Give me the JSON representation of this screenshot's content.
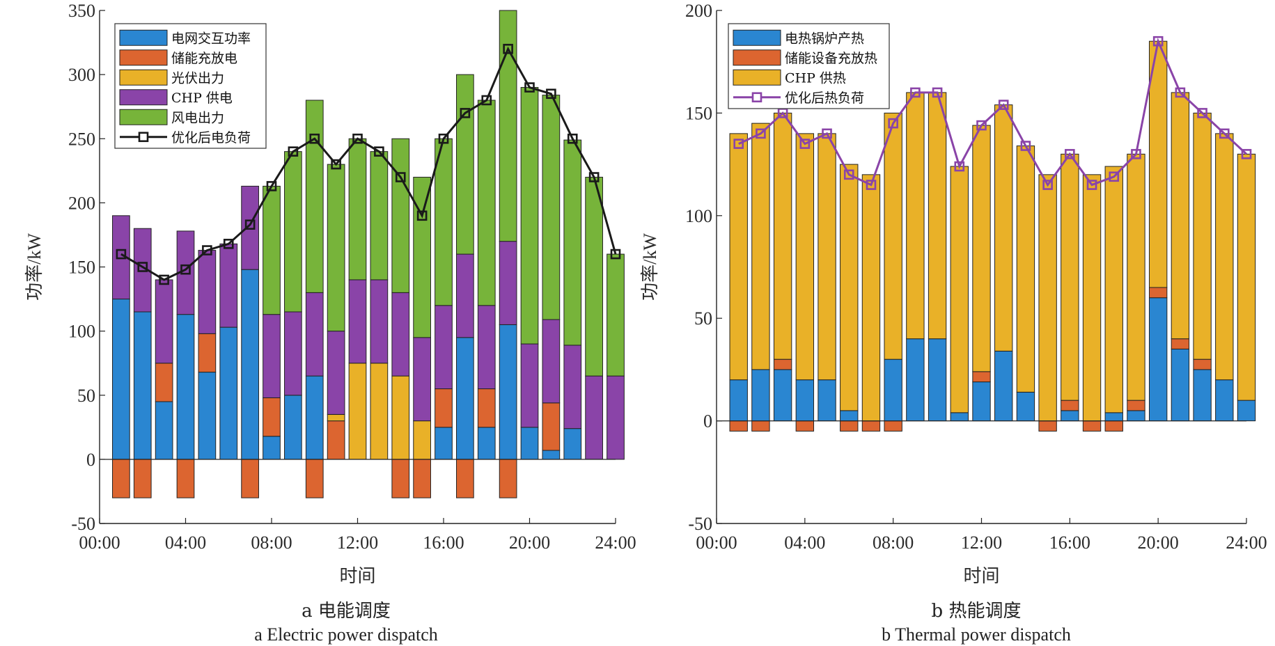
{
  "colors": {
    "blue": "#2a86d1",
    "orange": "#dc6530",
    "yellow": "#e9b128",
    "purple": "#8a44a8",
    "green": "#77b43a",
    "line_black": "#1a1a1a",
    "line_purple": "#8a44a8"
  },
  "chart_data": [
    {
      "id": "a",
      "type": "bar",
      "stacked": true,
      "caption_cn": "a  电能调度",
      "caption_en": "a  Electric power dispatch",
      "xlabel": "时间",
      "ylabel": "功率/kW",
      "xlim": [
        0,
        24
      ],
      "ylim": [
        -50,
        350
      ],
      "yticks": [
        -50,
        0,
        50,
        100,
        150,
        200,
        250,
        300,
        350
      ],
      "xticks": [
        0,
        4,
        8,
        12,
        16,
        20,
        24
      ],
      "xtick_labels": [
        "00:00",
        "04:00",
        "08:00",
        "12:00",
        "16:00",
        "20:00",
        "24:00"
      ],
      "grid": false,
      "legend_position": "top-left",
      "x": [
        1,
        2,
        3,
        4,
        5,
        6,
        7,
        8,
        9,
        10,
        11,
        12,
        13,
        14,
        15,
        16,
        17,
        18,
        19,
        20,
        21,
        22,
        23,
        24
      ],
      "series": [
        {
          "name": "电网交互功率",
          "color_key": "blue",
          "values": [
            125,
            115,
            45,
            113,
            68,
            103,
            148,
            18,
            50,
            65,
            0,
            0,
            0,
            0,
            0,
            25,
            95,
            25,
            105,
            25,
            7,
            24,
            0,
            0
          ]
        },
        {
          "name": "储能充放电",
          "color_key": "orange",
          "values": [
            -30,
            -30,
            30,
            -30,
            30,
            0,
            -30,
            30,
            0,
            -30,
            30,
            0,
            0,
            -30,
            -30,
            30,
            -30,
            30,
            -30,
            0,
            37,
            0,
            0,
            0
          ]
        },
        {
          "name": "光伏出力",
          "color_key": "yellow",
          "values": [
            0,
            0,
            0,
            0,
            0,
            0,
            0,
            0,
            0,
            0,
            5,
            75,
            75,
            65,
            30,
            0,
            0,
            0,
            0,
            0,
            0,
            0,
            0,
            0
          ]
        },
        {
          "name": "CHP 供电",
          "color_key": "purple",
          "values": [
            65,
            65,
            65,
            65,
            65,
            65,
            65,
            65,
            65,
            65,
            65,
            65,
            65,
            65,
            65,
            65,
            65,
            65,
            65,
            65,
            65,
            65,
            65,
            65
          ]
        },
        {
          "name": "风电出力",
          "color_key": "green",
          "values": [
            0,
            0,
            0,
            0,
            0,
            0,
            0,
            100,
            125,
            150,
            130,
            110,
            100,
            120,
            125,
            130,
            140,
            160,
            180,
            200,
            175,
            160,
            155,
            95
          ]
        }
      ],
      "line": {
        "name": "优化后电负荷",
        "color_key": "line_black",
        "values": [
          160,
          150,
          140,
          148,
          163,
          168,
          183,
          213,
          240,
          250,
          230,
          250,
          240,
          220,
          190,
          250,
          270,
          280,
          320,
          290,
          285,
          250,
          220,
          160
        ]
      }
    },
    {
      "id": "b",
      "type": "bar",
      "stacked": true,
      "caption_cn": "b  热能调度",
      "caption_en": "b  Thermal power dispatch",
      "xlabel": "时间",
      "ylabel": "功率/kW",
      "xlim": [
        0,
        24
      ],
      "ylim": [
        -50,
        200
      ],
      "yticks": [
        -50,
        0,
        50,
        100,
        150,
        200
      ],
      "xticks": [
        0,
        4,
        8,
        12,
        16,
        20,
        24
      ],
      "xtick_labels": [
        "00:00",
        "04:00",
        "08:00",
        "12:00",
        "16:00",
        "20:00",
        "24:00"
      ],
      "grid": false,
      "legend_position": "top-left",
      "x": [
        1,
        2,
        3,
        4,
        5,
        6,
        7,
        8,
        9,
        10,
        11,
        12,
        13,
        14,
        15,
        16,
        17,
        18,
        19,
        20,
        21,
        22,
        23,
        24
      ],
      "series": [
        {
          "name": "电热锅炉产热",
          "color_key": "blue",
          "values": [
            20,
            25,
            25,
            20,
            20,
            5,
            0,
            30,
            40,
            40,
            4,
            19,
            34,
            14,
            0,
            5,
            0,
            4,
            5,
            60,
            35,
            25,
            20,
            10
          ]
        },
        {
          "name": "储能设备充放热",
          "color_key": "orange",
          "values": [
            -5,
            -5,
            5,
            -5,
            0,
            -5,
            -5,
            -5,
            0,
            0,
            0,
            5,
            0,
            0,
            -5,
            5,
            -5,
            -5,
            5,
            5,
            5,
            5,
            0,
            0
          ]
        },
        {
          "name": "CHP 供热",
          "color_key": "yellow",
          "values": [
            120,
            120,
            120,
            120,
            120,
            120,
            120,
            120,
            120,
            120,
            120,
            120,
            120,
            120,
            120,
            120,
            120,
            120,
            120,
            120,
            120,
            120,
            120,
            120
          ]
        }
      ],
      "line": {
        "name": "优化后热负荷",
        "color_key": "line_purple",
        "values": [
          135,
          140,
          150,
          135,
          140,
          120,
          115,
          145,
          160,
          160,
          124,
          144,
          154,
          134,
          115,
          130,
          115,
          119,
          130,
          185,
          160,
          150,
          140,
          130
        ]
      }
    }
  ]
}
